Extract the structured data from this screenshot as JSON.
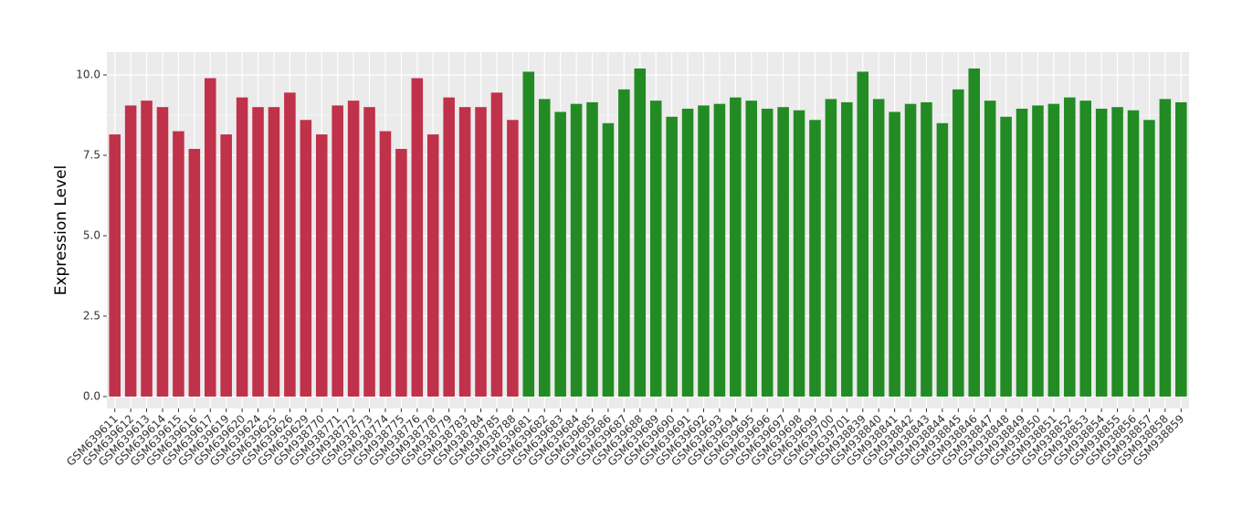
{
  "chart_data": {
    "type": "bar",
    "y_label": "Expression Level",
    "categories": [
      "GSM639611",
      "GSM639612",
      "GSM639613",
      "GSM639614",
      "GSM639615",
      "GSM639616",
      "GSM639617",
      "GSM639619",
      "GSM639620",
      "GSM639624",
      "GSM639625",
      "GSM639626",
      "GSM639629",
      "GSM938770",
      "GSM938771",
      "GSM938772",
      "GSM938773",
      "GSM938774",
      "GSM938775",
      "GSM938776",
      "GSM938778",
      "GSM938779",
      "GSM938783",
      "GSM938784",
      "GSM938785",
      "GSM938788",
      "GSM639681",
      "GSM639682",
      "GSM639683",
      "GSM639684",
      "GSM639685",
      "GSM639686",
      "GSM639687",
      "GSM639688",
      "GSM639689",
      "GSM639690",
      "GSM639691",
      "GSM639692",
      "GSM639693",
      "GSM639694",
      "GSM639695",
      "GSM639696",
      "GSM639697",
      "GSM639698",
      "GSM639699",
      "GSM639700",
      "GSM639701",
      "GSM938839",
      "GSM938840",
      "GSM938841",
      "GSM938842",
      "GSM938843",
      "GSM938844",
      "GSM938845",
      "GSM938846",
      "GSM938847",
      "GSM938848",
      "GSM938849",
      "GSM938850",
      "GSM938851",
      "GSM938852",
      "GSM938853",
      "GSM938854",
      "GSM938855",
      "GSM938856",
      "GSM938857",
      "GSM938858",
      "GSM938859"
    ],
    "series": [
      {
        "color": "#c0314a",
        "values": [
          8.15,
          9.05,
          9.2,
          9.0,
          8.25,
          7.7,
          9.9,
          8.15,
          9.3,
          9.0,
          9.0,
          9.45,
          8.6,
          8.15,
          9.05,
          9.2,
          9.0,
          8.25,
          7.7,
          9.9,
          8.15,
          9.3,
          9.0,
          9.0,
          9.45,
          8.6,
          null,
          null,
          null,
          null,
          null,
          null,
          null,
          null,
          null,
          null,
          null,
          null,
          null,
          null,
          null,
          null,
          null,
          null,
          null,
          null,
          null,
          null,
          null,
          null,
          null,
          null,
          null,
          null,
          null,
          null,
          null,
          null,
          null,
          null,
          null,
          null,
          null,
          null,
          null,
          null,
          null,
          null
        ]
      },
      {
        "color": "#238b23",
        "values": [
          null,
          null,
          null,
          null,
          null,
          null,
          null,
          null,
          null,
          null,
          null,
          null,
          null,
          null,
          null,
          null,
          null,
          null,
          null,
          null,
          null,
          null,
          null,
          null,
          null,
          null,
          10.1,
          9.25,
          8.85,
          9.1,
          9.15,
          8.5,
          9.55,
          10.2,
          9.2,
          8.7,
          8.95,
          9.05,
          9.1,
          9.3,
          9.2,
          8.95,
          9.0,
          8.9,
          8.6,
          9.25,
          9.15,
          10.1,
          9.25,
          8.85,
          9.1,
          9.15,
          8.5,
          9.55,
          10.2,
          9.2,
          8.7,
          8.95,
          9.05,
          9.1,
          9.3,
          9.2,
          8.95,
          9.0,
          8.9,
          8.6,
          9.25,
          9.15
        ]
      }
    ],
    "ylim": [
      -0.37,
      10.71
    ],
    "yticks": [
      {
        "value": 0,
        "label": "0.0"
      },
      {
        "value": 2.5,
        "label": "2.5"
      },
      {
        "value": 5,
        "label": "5.0"
      },
      {
        "value": 7.5,
        "label": "7.5"
      },
      {
        "value": 10,
        "label": "10.0"
      }
    ],
    "grid": true
  }
}
